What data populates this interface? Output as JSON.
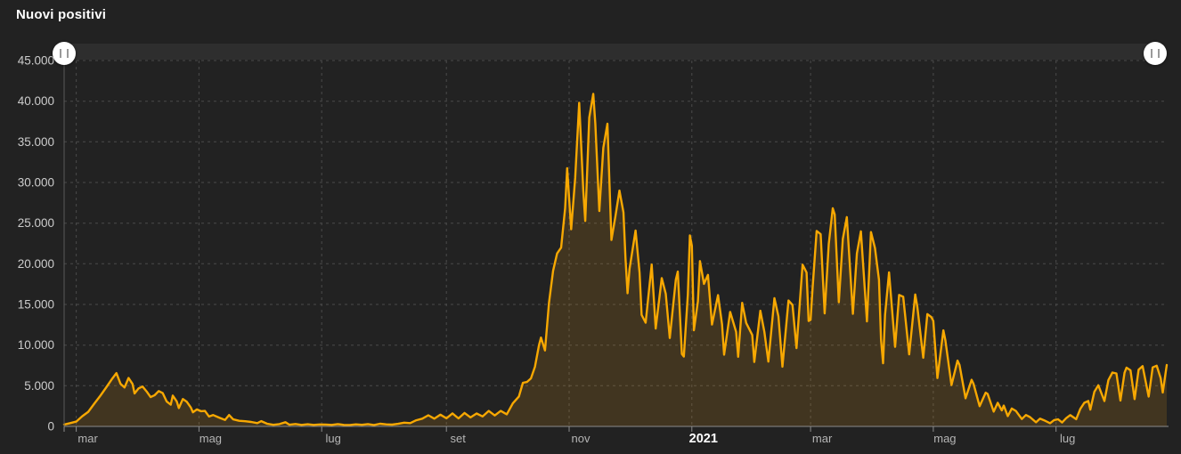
{
  "title": "Nuovi positivi",
  "colors": {
    "background": "#222222",
    "line": "#f7a802",
    "fill": "rgba(255,171,20,0.14)",
    "grid": "#4a4a4a",
    "axis": "#8c8c8c",
    "y_axis": "#5a5a5a",
    "y_label": "#cccccc",
    "x_label": "#b5b5b5",
    "year_label": "#ffffff",
    "title": "#ffffff",
    "slider_track": "#2e2e2e",
    "slider_handle": "#ffffff",
    "handle_bars": "#9a9a9a"
  },
  "slider": {
    "left_handle_icon": "drag-handle",
    "right_handle_icon": "drag-handle"
  },
  "chart_data": {
    "type": "area",
    "title": "Nuovi positivi",
    "xlabel": "",
    "ylabel": "",
    "ylim": [
      0,
      45000
    ],
    "grid": "dashed",
    "x_axis_note": "daily values; x expressed as day index from first plotted day, ticks mark month starts",
    "y_ticks": [
      {
        "value": 0,
        "label": "0"
      },
      {
        "value": 5000,
        "label": "5.000"
      },
      {
        "value": 10000,
        "label": "10.000"
      },
      {
        "value": 15000,
        "label": "15.000"
      },
      {
        "value": 20000,
        "label": "20.000"
      },
      {
        "value": 25000,
        "label": "25.000"
      },
      {
        "value": 30000,
        "label": "30.000"
      },
      {
        "value": 35000,
        "label": "35.000"
      },
      {
        "value": 40000,
        "label": "40.000"
      },
      {
        "value": 45000,
        "label": "45.000"
      }
    ],
    "x_ticks": [
      {
        "day": 6,
        "label": "mar",
        "bold": false
      },
      {
        "day": 67,
        "label": "mag",
        "bold": false
      },
      {
        "day": 128,
        "label": "lug",
        "bold": false
      },
      {
        "day": 190,
        "label": "set",
        "bold": false
      },
      {
        "day": 251,
        "label": "nov",
        "bold": false
      },
      {
        "day": 312,
        "label": "2021",
        "bold": true
      },
      {
        "day": 371,
        "label": "mar",
        "bold": false
      },
      {
        "day": 432,
        "label": "mag",
        "bold": false
      },
      {
        "day": 493,
        "label": "lug",
        "bold": false
      }
    ],
    "series": [
      {
        "name": "Nuovi positivi",
        "points": [
          [
            0,
            230
          ],
          [
            3,
            400
          ],
          [
            6,
            590
          ],
          [
            9,
            1250
          ],
          [
            12,
            1800
          ],
          [
            15,
            2800
          ],
          [
            18,
            3780
          ],
          [
            21,
            4820
          ],
          [
            24,
            5900
          ],
          [
            26,
            6560
          ],
          [
            28,
            5250
          ],
          [
            30,
            4790
          ],
          [
            32,
            5960
          ],
          [
            34,
            5220
          ],
          [
            35,
            4050
          ],
          [
            37,
            4670
          ],
          [
            39,
            4900
          ],
          [
            41,
            4300
          ],
          [
            43,
            3600
          ],
          [
            45,
            3840
          ],
          [
            47,
            4350
          ],
          [
            49,
            4090
          ],
          [
            51,
            3050
          ],
          [
            53,
            2670
          ],
          [
            54,
            3790
          ],
          [
            56,
            3050
          ],
          [
            57,
            2250
          ],
          [
            59,
            3370
          ],
          [
            61,
            3020
          ],
          [
            63,
            2320
          ],
          [
            64,
            1740
          ],
          [
            66,
            2090
          ],
          [
            68,
            1870
          ],
          [
            70,
            1900
          ],
          [
            72,
            1220
          ],
          [
            74,
            1400
          ],
          [
            77,
            1080
          ],
          [
            80,
            800
          ],
          [
            82,
            1400
          ],
          [
            84,
            870
          ],
          [
            87,
            690
          ],
          [
            90,
            640
          ],
          [
            93,
            550
          ],
          [
            96,
            400
          ],
          [
            98,
            650
          ],
          [
            101,
            320
          ],
          [
            104,
            200
          ],
          [
            107,
            280
          ],
          [
            110,
            520
          ],
          [
            112,
            210
          ],
          [
            115,
            300
          ],
          [
            118,
            190
          ],
          [
            121,
            260
          ],
          [
            124,
            190
          ],
          [
            127,
            240
          ],
          [
            130,
            230
          ],
          [
            133,
            190
          ],
          [
            136,
            280
          ],
          [
            139,
            190
          ],
          [
            142,
            170
          ],
          [
            145,
            250
          ],
          [
            148,
            200
          ],
          [
            151,
            280
          ],
          [
            154,
            170
          ],
          [
            157,
            330
          ],
          [
            160,
            250
          ],
          [
            163,
            220
          ],
          [
            166,
            320
          ],
          [
            169,
            460
          ],
          [
            172,
            400
          ],
          [
            175,
            750
          ],
          [
            178,
            950
          ],
          [
            181,
            1370
          ],
          [
            184,
            950
          ],
          [
            187,
            1450
          ],
          [
            190,
            1000
          ],
          [
            193,
            1600
          ],
          [
            196,
            980
          ],
          [
            199,
            1650
          ],
          [
            202,
            1110
          ],
          [
            205,
            1590
          ],
          [
            208,
            1230
          ],
          [
            211,
            1910
          ],
          [
            214,
            1350
          ],
          [
            217,
            1910
          ],
          [
            220,
            1490
          ],
          [
            223,
            2840
          ],
          [
            226,
            3680
          ],
          [
            228,
            5370
          ],
          [
            230,
            5460
          ],
          [
            232,
            5900
          ],
          [
            234,
            7330
          ],
          [
            236,
            10010
          ],
          [
            237,
            10930
          ],
          [
            239,
            9340
          ],
          [
            241,
            15200
          ],
          [
            243,
            19140
          ],
          [
            245,
            21270
          ],
          [
            247,
            21990
          ],
          [
            249,
            26830
          ],
          [
            250,
            31760
          ],
          [
            252,
            24250
          ],
          [
            254,
            30550
          ],
          [
            256,
            39810
          ],
          [
            258,
            29000
          ],
          [
            259,
            25270
          ],
          [
            261,
            37980
          ],
          [
            263,
            40900
          ],
          [
            264,
            37260
          ],
          [
            266,
            26500
          ],
          [
            268,
            34280
          ],
          [
            270,
            37240
          ],
          [
            272,
            22930
          ],
          [
            274,
            25850
          ],
          [
            276,
            29000
          ],
          [
            278,
            26320
          ],
          [
            279,
            20650
          ],
          [
            280,
            16380
          ],
          [
            281,
            19350
          ],
          [
            284,
            24100
          ],
          [
            286,
            18890
          ],
          [
            287,
            13720
          ],
          [
            289,
            12760
          ],
          [
            292,
            19900
          ],
          [
            294,
            12030
          ],
          [
            297,
            18240
          ],
          [
            299,
            16310
          ],
          [
            301,
            10870
          ],
          [
            304,
            18040
          ],
          [
            305,
            19040
          ],
          [
            307,
            8910
          ],
          [
            308,
            8590
          ],
          [
            310,
            16200
          ],
          [
            311,
            23480
          ],
          [
            312,
            22210
          ],
          [
            313,
            11830
          ],
          [
            315,
            15380
          ],
          [
            316,
            20330
          ],
          [
            318,
            17530
          ],
          [
            320,
            18630
          ],
          [
            322,
            12530
          ],
          [
            325,
            16150
          ],
          [
            327,
            12550
          ],
          [
            328,
            8820
          ],
          [
            331,
            14080
          ],
          [
            334,
            11630
          ],
          [
            335,
            8560
          ],
          [
            337,
            15200
          ],
          [
            339,
            12720
          ],
          [
            342,
            11250
          ],
          [
            343,
            7930
          ],
          [
            346,
            14220
          ],
          [
            348,
            11640
          ],
          [
            350,
            7970
          ],
          [
            353,
            15770
          ],
          [
            355,
            13530
          ],
          [
            357,
            7350
          ],
          [
            360,
            15480
          ],
          [
            362,
            14930
          ],
          [
            364,
            9630
          ],
          [
            367,
            19890
          ],
          [
            369,
            18920
          ],
          [
            370,
            12960
          ],
          [
            371,
            13110
          ],
          [
            372,
            17080
          ],
          [
            374,
            24040
          ],
          [
            376,
            23640
          ],
          [
            378,
            13900
          ],
          [
            380,
            22410
          ],
          [
            382,
            26820
          ],
          [
            383,
            26060
          ],
          [
            385,
            15270
          ],
          [
            387,
            23060
          ],
          [
            389,
            25740
          ],
          [
            392,
            13850
          ],
          [
            394,
            21270
          ],
          [
            396,
            23990
          ],
          [
            399,
            12920
          ],
          [
            401,
            23900
          ],
          [
            403,
            21930
          ],
          [
            405,
            18030
          ],
          [
            406,
            10680
          ],
          [
            407,
            7770
          ],
          [
            408,
            13710
          ],
          [
            410,
            18940
          ],
          [
            413,
            9790
          ],
          [
            415,
            16170
          ],
          [
            417,
            15940
          ],
          [
            420,
            8860
          ],
          [
            423,
            16230
          ],
          [
            424,
            14760
          ],
          [
            427,
            8440
          ],
          [
            429,
            13820
          ],
          [
            431,
            13450
          ],
          [
            432,
            12970
          ],
          [
            434,
            5950
          ],
          [
            437,
            11810
          ],
          [
            438,
            10550
          ],
          [
            441,
            5080
          ],
          [
            444,
            8090
          ],
          [
            445,
            7570
          ],
          [
            448,
            3460
          ],
          [
            451,
            5740
          ],
          [
            452,
            5220
          ],
          [
            455,
            2490
          ],
          [
            458,
            4150
          ],
          [
            459,
            4000
          ],
          [
            462,
            1820
          ],
          [
            464,
            2900
          ],
          [
            466,
            1970
          ],
          [
            467,
            2560
          ],
          [
            469,
            1270
          ],
          [
            471,
            2200
          ],
          [
            473,
            1900
          ],
          [
            476,
            910
          ],
          [
            478,
            1400
          ],
          [
            480,
            1150
          ],
          [
            483,
            500
          ],
          [
            485,
            950
          ],
          [
            487,
            750
          ],
          [
            490,
            390
          ],
          [
            492,
            780
          ],
          [
            494,
            880
          ],
          [
            496,
            480
          ],
          [
            498,
            1010
          ],
          [
            500,
            1390
          ],
          [
            503,
            890
          ],
          [
            505,
            2150
          ],
          [
            507,
            2900
          ],
          [
            509,
            3130
          ],
          [
            510,
            2070
          ],
          [
            512,
            4260
          ],
          [
            514,
            5060
          ],
          [
            517,
            3120
          ],
          [
            519,
            5700
          ],
          [
            521,
            6620
          ],
          [
            523,
            6510
          ],
          [
            525,
            3190
          ],
          [
            527,
            6600
          ],
          [
            528,
            7230
          ],
          [
            530,
            6900
          ],
          [
            532,
            3360
          ],
          [
            534,
            6970
          ],
          [
            536,
            7410
          ],
          [
            539,
            3670
          ],
          [
            541,
            7260
          ],
          [
            543,
            7470
          ],
          [
            545,
            5920
          ],
          [
            546,
            4170
          ],
          [
            548,
            7550
          ]
        ]
      }
    ]
  }
}
